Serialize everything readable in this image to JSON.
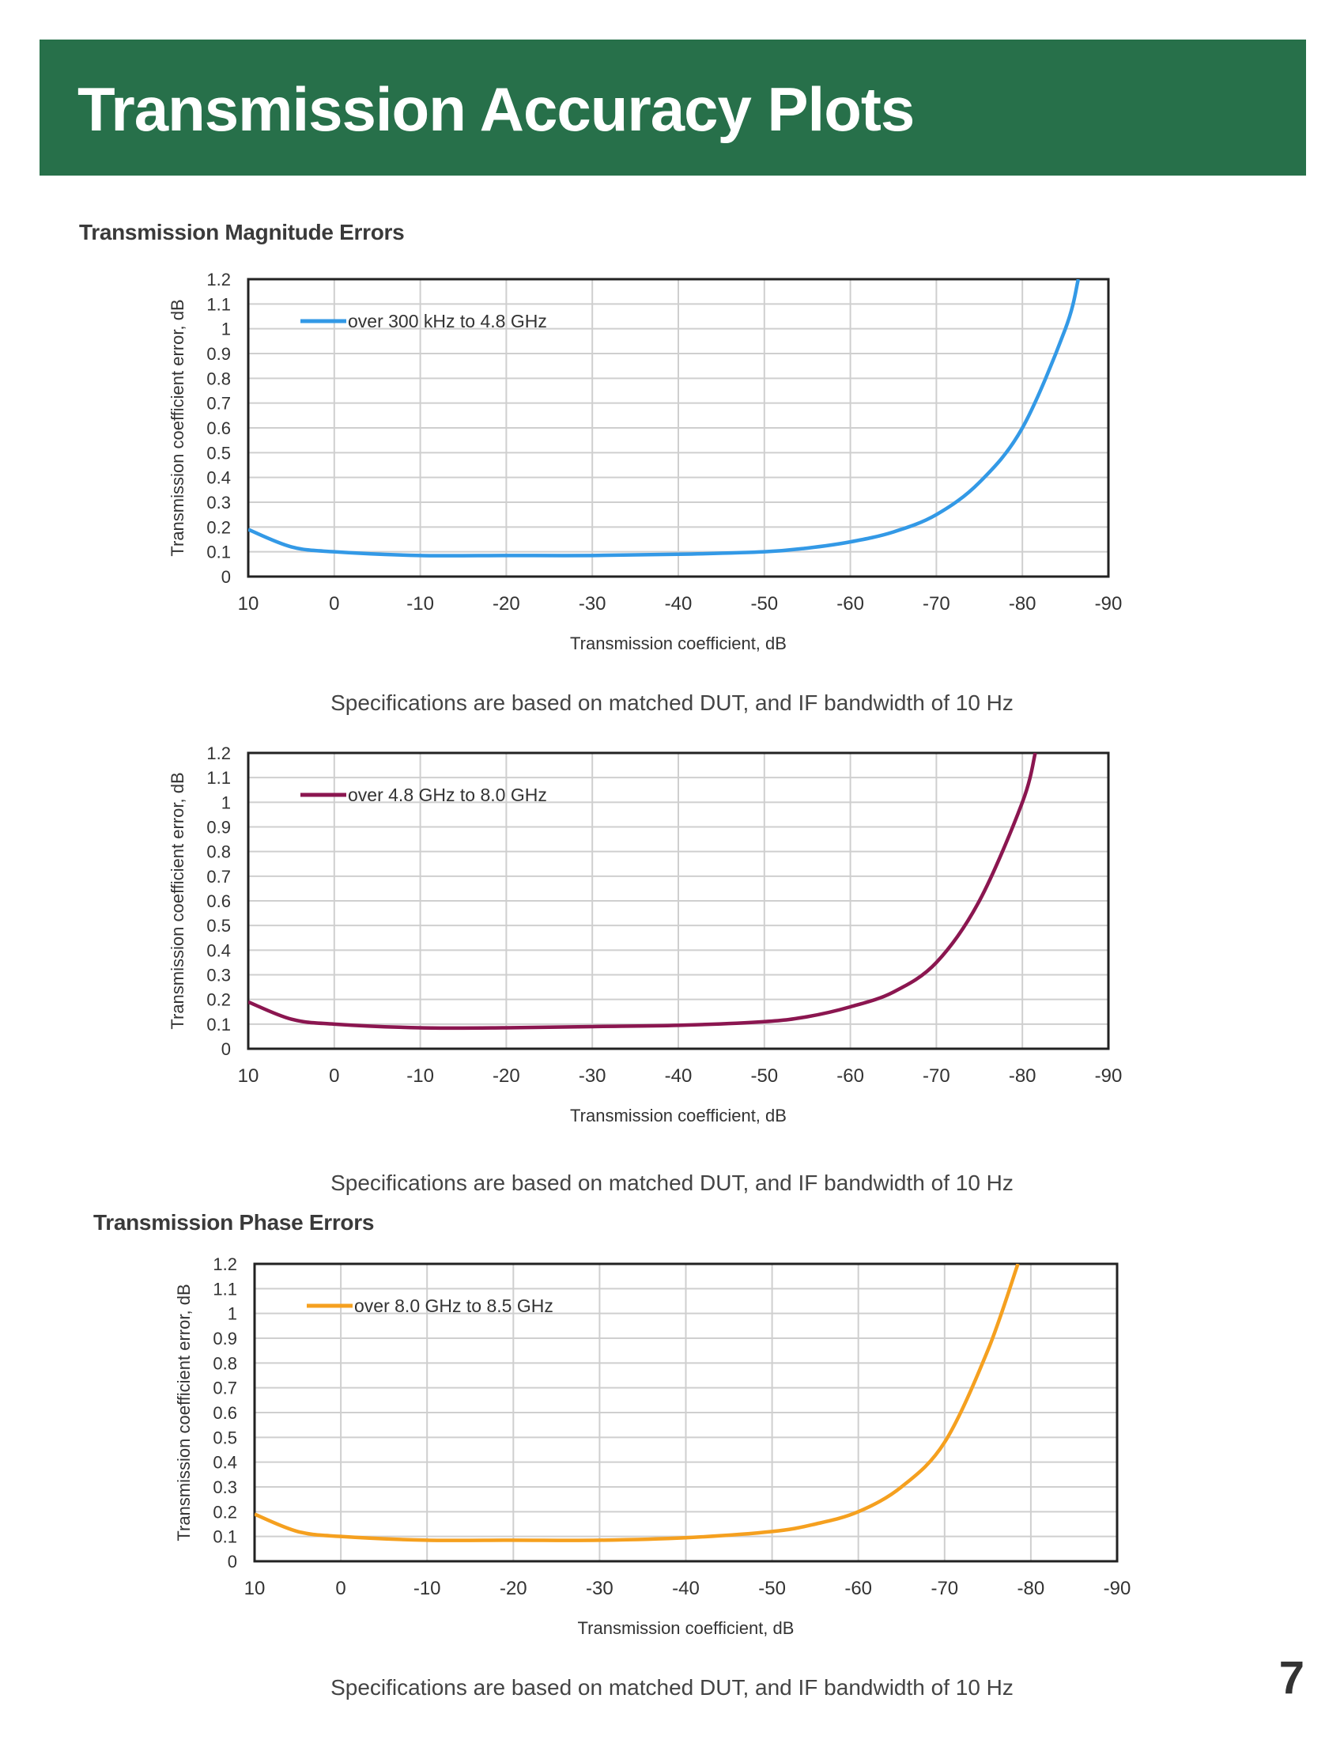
{
  "header": {
    "title": "Transmission Accuracy Plots"
  },
  "sections": {
    "magnitude_title": "Transmission Magnitude Errors",
    "phase_title": "Transmission Phase Errors"
  },
  "captions": [
    "Specifications are based on matched DUT, and IF bandwidth of 10 Hz",
    "Specifications are based on matched DUT, and IF bandwidth of 10 Hz",
    "Specifications are based on matched DUT, and IF bandwidth of 10 Hz"
  ],
  "page_number": "7",
  "chart_data": [
    {
      "type": "line",
      "xlabel": "Transmission coefficient, dB",
      "ylabel": "Transmission coefficient error, dB",
      "xlim": [
        10,
        -90
      ],
      "ylim": [
        0,
        1.2
      ],
      "x_ticks": [
        "10",
        "0",
        "-10",
        "-20",
        "-30",
        "-40",
        "-50",
        "-60",
        "-70",
        "-80",
        "-90"
      ],
      "y_ticks": [
        "0",
        "0.1",
        "0.2",
        "0.3",
        "0.4",
        "0.5",
        "0.6",
        "0.7",
        "0.8",
        "0.9",
        "1",
        "1.1",
        "1.2"
      ],
      "grid": true,
      "legend": "top-left",
      "series": [
        {
          "name": "over 300 kHz to 4.8 GHz",
          "color": "#3399e6",
          "x": [
            10,
            5,
            0,
            -10,
            -20,
            -30,
            -40,
            -50,
            -55,
            -60,
            -65,
            -70,
            -75,
            -80,
            -85,
            -86.5
          ],
          "y": [
            0.19,
            0.12,
            0.1,
            0.085,
            0.085,
            0.085,
            0.09,
            0.1,
            0.115,
            0.14,
            0.18,
            0.25,
            0.38,
            0.6,
            1.0,
            1.2
          ]
        }
      ]
    },
    {
      "type": "line",
      "xlabel": "Transmission coefficient, dB",
      "ylabel": "Transmission coefficient error, dB",
      "xlim": [
        10,
        -90
      ],
      "ylim": [
        0,
        1.2
      ],
      "x_ticks": [
        "10",
        "0",
        "-10",
        "-20",
        "-30",
        "-40",
        "-50",
        "-60",
        "-70",
        "-80",
        "-90"
      ],
      "y_ticks": [
        "0",
        "0.1",
        "0.2",
        "0.3",
        "0.4",
        "0.5",
        "0.6",
        "0.7",
        "0.8",
        "0.9",
        "1",
        "1.1",
        "1.2"
      ],
      "grid": true,
      "legend": "top-left",
      "series": [
        {
          "name": "over 4.8 GHz to 8.0 GHz",
          "color": "#8b1650",
          "x": [
            10,
            5,
            0,
            -10,
            -20,
            -30,
            -40,
            -50,
            -55,
            -60,
            -65,
            -70,
            -75,
            -80,
            -81.5
          ],
          "y": [
            0.19,
            0.12,
            0.1,
            0.085,
            0.085,
            0.09,
            0.095,
            0.11,
            0.13,
            0.17,
            0.23,
            0.35,
            0.6,
            1.0,
            1.2
          ]
        }
      ]
    },
    {
      "type": "line",
      "xlabel": "Transmission coefficient, dB",
      "ylabel": "Transmission coefficient error, dB",
      "xlim": [
        10,
        -90
      ],
      "ylim": [
        0,
        1.2
      ],
      "x_ticks": [
        "10",
        "0",
        "-10",
        "-20",
        "-30",
        "-40",
        "-50",
        "-60",
        "-70",
        "-80",
        "-90"
      ],
      "y_ticks": [
        "0",
        "0.1",
        "0.2",
        "0.3",
        "0.4",
        "0.5",
        "0.6",
        "0.7",
        "0.8",
        "0.9",
        "1",
        "1.1",
        "1.2"
      ],
      "grid": true,
      "legend": "top-left",
      "series": [
        {
          "name": "over 8.0 GHz to 8.5 GHz",
          "color": "#f5a01f",
          "x": [
            10,
            5,
            0,
            -10,
            -20,
            -30,
            -40,
            -50,
            -55,
            -60,
            -65,
            -70,
            -75,
            -78.5
          ],
          "y": [
            0.19,
            0.12,
            0.1,
            0.085,
            0.085,
            0.085,
            0.095,
            0.12,
            0.15,
            0.2,
            0.3,
            0.48,
            0.85,
            1.2
          ]
        }
      ]
    }
  ]
}
